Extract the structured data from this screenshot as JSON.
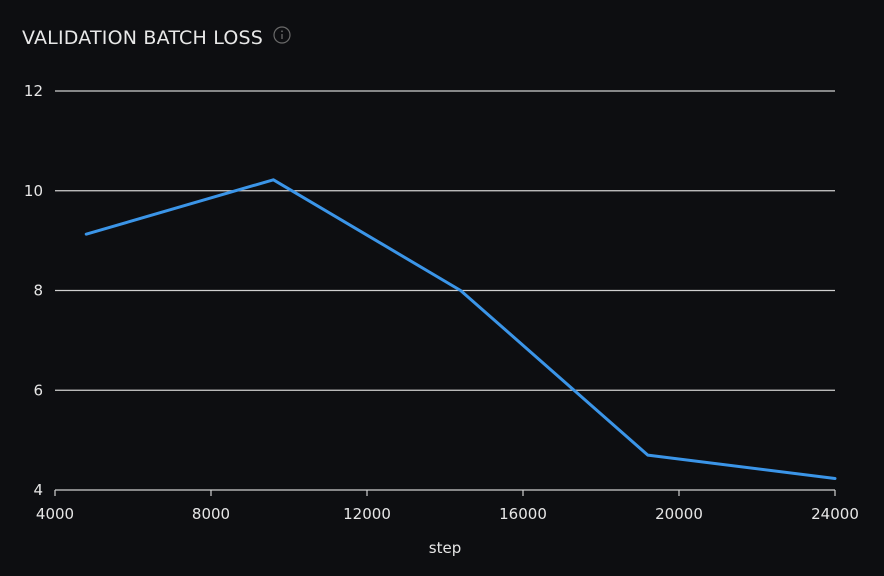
{
  "chart_data": {
    "type": "line",
    "title": "VALIDATION BATCH LOSS",
    "xlabel": "step",
    "ylabel": "",
    "xlim": [
      4000,
      24000
    ],
    "ylim": [
      4,
      12
    ],
    "xticks": [
      4000,
      8000,
      12000,
      16000,
      20000,
      24000
    ],
    "yticks": [
      4,
      6,
      8,
      10,
      12
    ],
    "grid": true,
    "series": [
      {
        "color": "#3b95e8",
        "x": [
          4800,
          9600,
          14400,
          19200,
          24000
        ],
        "y": [
          9.13,
          10.22,
          8.0,
          4.7,
          4.23
        ]
      }
    ]
  },
  "icons": {
    "info": "info-icon"
  },
  "colors": {
    "background": "#0d0e11",
    "grid": "#d0d0d0",
    "text": "#e6e6e6",
    "line": "#3b95e8"
  }
}
